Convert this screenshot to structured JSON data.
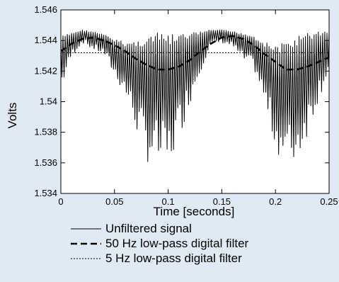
{
  "chart_data": {
    "type": "line",
    "xlabel": "Time [seconds]",
    "ylabel": "Volts",
    "xlim": [
      0,
      0.25
    ],
    "ylim": [
      1.534,
      1.546
    ],
    "xticks": [
      0,
      0.05,
      0.1,
      0.15,
      0.2,
      0.25
    ],
    "xtick_labels": [
      "0",
      "0.05",
      "0.1",
      "0.15",
      "0.2",
      "0.25"
    ],
    "yticks": [
      1.534,
      1.536,
      1.538,
      1.54,
      1.542,
      1.544,
      1.546
    ],
    "ytick_labels": [
      "1.534",
      "1.536",
      "1.538",
      "1.54",
      "1.542",
      "1.544",
      "1.546"
    ],
    "grid": false,
    "legend_position": "below",
    "series": [
      {
        "name": "Unfiltered signal",
        "style": "solid",
        "noise_envelope": {
          "x": [
            0,
            0.01,
            0.02,
            0.03,
            0.04,
            0.05,
            0.06,
            0.07,
            0.08,
            0.09,
            0.1,
            0.11,
            0.12,
            0.13,
            0.14,
            0.15,
            0.16,
            0.17,
            0.18,
            0.19,
            0.2,
            0.21,
            0.22,
            0.23,
            0.24,
            0.25
          ],
          "upper": [
            1.5443,
            1.5445,
            1.5447,
            1.5446,
            1.5444,
            1.5441,
            1.5439,
            1.544,
            1.5443,
            1.5445,
            1.5444,
            1.5444,
            1.5445,
            1.5446,
            1.5447,
            1.5447,
            1.5446,
            1.5445,
            1.5443,
            1.5439,
            1.5437,
            1.5439,
            1.5443,
            1.5445,
            1.5446,
            1.5447
          ],
          "lower": [
            1.5405,
            1.5428,
            1.5438,
            1.5433,
            1.543,
            1.5415,
            1.5402,
            1.5378,
            1.5356,
            1.5352,
            1.5348,
            1.5372,
            1.5395,
            1.5418,
            1.5436,
            1.5438,
            1.5435,
            1.5425,
            1.542,
            1.5395,
            1.5365,
            1.5352,
            1.5355,
            1.5375,
            1.5398,
            1.5418
          ]
        }
      },
      {
        "name": "50 Hz low-pass digital filter",
        "style": "dashed",
        "x": [
          0,
          0.01,
          0.02,
          0.03,
          0.04,
          0.05,
          0.06,
          0.07,
          0.08,
          0.09,
          0.1,
          0.11,
          0.12,
          0.13,
          0.14,
          0.15,
          0.16,
          0.17,
          0.18,
          0.19,
          0.2,
          0.21,
          0.22,
          0.23,
          0.24,
          0.25
        ],
        "y": [
          1.5433,
          1.5438,
          1.5441,
          1.5442,
          1.544,
          1.5437,
          1.5433,
          1.5428,
          1.5424,
          1.5421,
          1.5421,
          1.5423,
          1.5427,
          1.5433,
          1.5438,
          1.5442,
          1.5443,
          1.5441,
          1.5437,
          1.5431,
          1.5426,
          1.5421,
          1.5421,
          1.5423,
          1.5426,
          1.5429
        ]
      },
      {
        "name": "5 Hz low-pass digital filter",
        "style": "dotted",
        "x": [
          0,
          0.25
        ],
        "y": [
          1.5432,
          1.5432
        ]
      }
    ]
  }
}
